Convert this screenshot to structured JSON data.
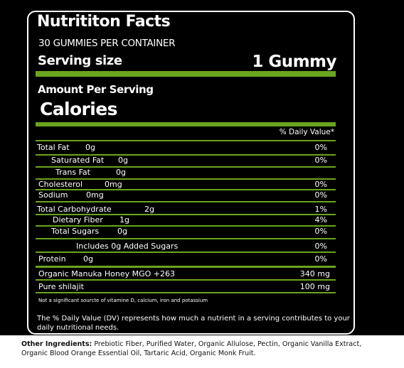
{
  "title": "Nutrititon Facts",
  "servings": "30 GUMMIES PER CONTAINER",
  "serving_size": {
    "label": "Serving size",
    "value": "1 Gummy"
  },
  "amount_per_serving": "Amount Per Serving",
  "calories": "Calories",
  "dv_header": "% Daily Value*",
  "rows": [
    {
      "label": "Total Fat",
      "amount": "0g",
      "dv": "0%"
    },
    {
      "label": "Saturated Fat",
      "amount": "0g",
      "dv": "0%"
    },
    {
      "label": "Trans Fat",
      "amount": "0g"
    },
    {
      "label": "Cholesterol",
      "amount": "0mg",
      "dv": "0%"
    },
    {
      "label": "Sodium",
      "amount": "0mg",
      "dv": "0%"
    },
    {
      "label": "Total Carbohydrate",
      "amount": "2g",
      "dv": "1%"
    },
    {
      "label": "Dietary Fiber",
      "amount": "1g",
      "dv": "4%"
    },
    {
      "label": "Total Sugars",
      "amount": "0g",
      "dv": "0%"
    },
    {
      "label": "Includes 0g Added Sugars",
      "dv": "0%"
    },
    {
      "label": "Protein",
      "amount": "0g",
      "dv": "0%"
    },
    {
      "label": "Organic Manuka Honey MGO +263",
      "amount": "340 mg"
    },
    {
      "label": "Pure shilajit",
      "amount": "100 mg"
    }
  ],
  "footnote": "Not a significant sourcte of vitamine D, calcium, iron and potassium",
  "dv_note": "The % Daily Value (DV) represents how much a nutrient in a serving contributes to your daily nutritional needs.",
  "other_ingredients": {
    "label": "Other Ingredients:",
    "text": "Prebiotic Fiber, Purified Water, Organic Allulose, Pectin, Organic Vanilla Extract, Organic Blood Orange Essential Oil, Tartaric Acid, Organic Monk Fruit."
  }
}
